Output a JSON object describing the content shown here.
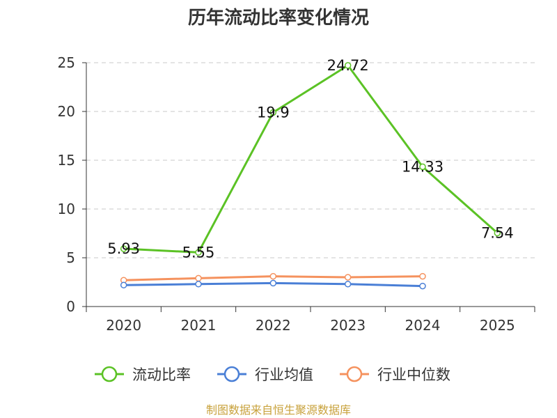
{
  "chart_data": {
    "type": "line",
    "title": "历年流动比率变化情况",
    "categories": [
      "2020",
      "2021",
      "2022",
      "2023",
      "2024",
      "2025"
    ],
    "ylim": [
      0,
      25
    ],
    "yticks": [
      "0",
      "5",
      "10",
      "15",
      "20",
      "25"
    ],
    "grid": true,
    "legend_position": "bottom",
    "series": [
      {
        "name": "流动比率",
        "color": "#5bc225",
        "values": [
          5.93,
          5.55,
          19.9,
          24.72,
          14.33,
          7.54
        ],
        "labels": [
          "5.93",
          "5.55",
          "19.9",
          "24.72",
          "14.33",
          "7.54"
        ]
      },
      {
        "name": "行业均值",
        "color": "#4a7fd6",
        "values": [
          2.2,
          2.3,
          2.4,
          2.3,
          2.1,
          null
        ]
      },
      {
        "name": "行业中位数",
        "color": "#f5925e",
        "values": [
          2.7,
          2.9,
          3.1,
          3.0,
          3.1,
          null
        ]
      }
    ],
    "source": "制图数据来自恒生聚源数据库"
  }
}
